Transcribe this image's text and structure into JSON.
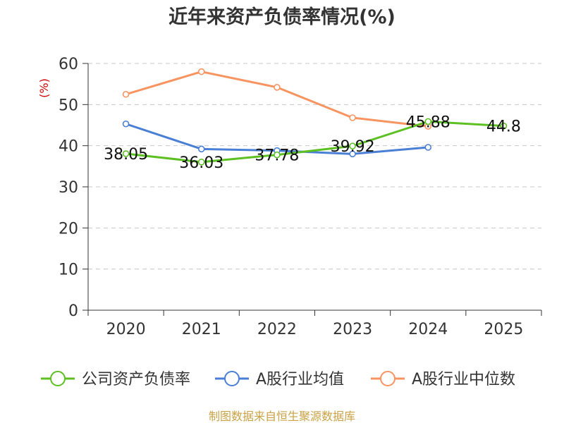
{
  "chart_data": {
    "type": "line",
    "title": "近年来资产负债率情况(%)",
    "ylabel": "(%)",
    "xlabel": "",
    "categories": [
      "2020",
      "2021",
      "2022",
      "2023",
      "2024",
      "2025"
    ],
    "ylim": [
      0,
      60
    ],
    "yticks": [
      0,
      10,
      20,
      30,
      40,
      50,
      60
    ],
    "grid": true,
    "legend_position": "bottom",
    "series": [
      {
        "name": "公司资产负债率",
        "color": "#5cc022",
        "values": [
          38.05,
          36.03,
          37.78,
          39.92,
          45.88,
          44.8
        ],
        "labels": [
          "38.05",
          "36.03",
          "37.78",
          "39.92",
          "45.88",
          "44.8"
        ]
      },
      {
        "name": "A股行业均值",
        "color": "#4a7fd6",
        "values": [
          45.3,
          39.2,
          38.8,
          38.0,
          39.6,
          null
        ],
        "labels": []
      },
      {
        "name": "A股行业中位数",
        "color": "#f79460",
        "values": [
          52.5,
          58.0,
          54.2,
          46.8,
          44.7,
          null
        ],
        "labels": []
      }
    ],
    "source": "制图数据来自恒生聚源数据库"
  }
}
